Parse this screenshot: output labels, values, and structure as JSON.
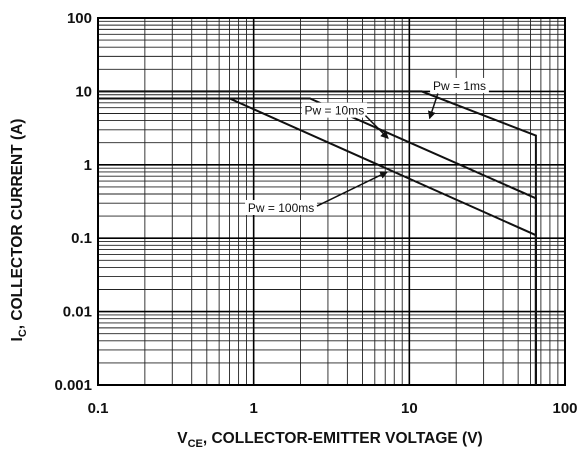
{
  "chart_data": {
    "type": "line",
    "title": "",
    "xlabel": {
      "main": "V",
      "sub": "CE",
      "rest": ", COLLECTOR-EMITTER VOLTAGE (V)"
    },
    "ylabel": {
      "main": "I",
      "sub": "C",
      "rest": ", COLLECTOR CURRENT (A)"
    },
    "xscale": "log",
    "yscale": "log",
    "xlim": [
      0.1,
      100
    ],
    "ylim": [
      0.001,
      100
    ],
    "grid": true,
    "x_ticks": [
      "0.1",
      "1",
      "10",
      "100"
    ],
    "y_ticks": [
      "0.001",
      "0.01",
      "0.1",
      "1",
      "10",
      "100"
    ],
    "series": [
      {
        "name": "Pw = 1ms",
        "x": [
          0.1,
          12,
          65,
          65
        ],
        "y": [
          10,
          10,
          2.5,
          0.001
        ]
      },
      {
        "name": "Pw = 10ms",
        "x": [
          0.1,
          2.3,
          65,
          65
        ],
        "y": [
          8,
          8,
          0.35,
          0.001
        ]
      },
      {
        "name": "Pw = 100ms",
        "x": [
          0.1,
          0.7,
          65,
          65
        ],
        "y": [
          8,
          8,
          0.11,
          0.001
        ]
      }
    ],
    "annotations": [
      {
        "text": "Pw = 1ms",
        "label_at": [
          21,
          11.5
        ],
        "arrow_to": [
          13.5,
          4.3
        ]
      },
      {
        "text": "Pw = 10ms",
        "label_at": [
          3.3,
          5.3
        ],
        "arrow_to": [
          7.3,
          2.3
        ]
      },
      {
        "text": "Pw = 100ms",
        "label_at": [
          1.5,
          0.25
        ],
        "arrow_to": [
          7.2,
          0.8
        ]
      }
    ]
  }
}
